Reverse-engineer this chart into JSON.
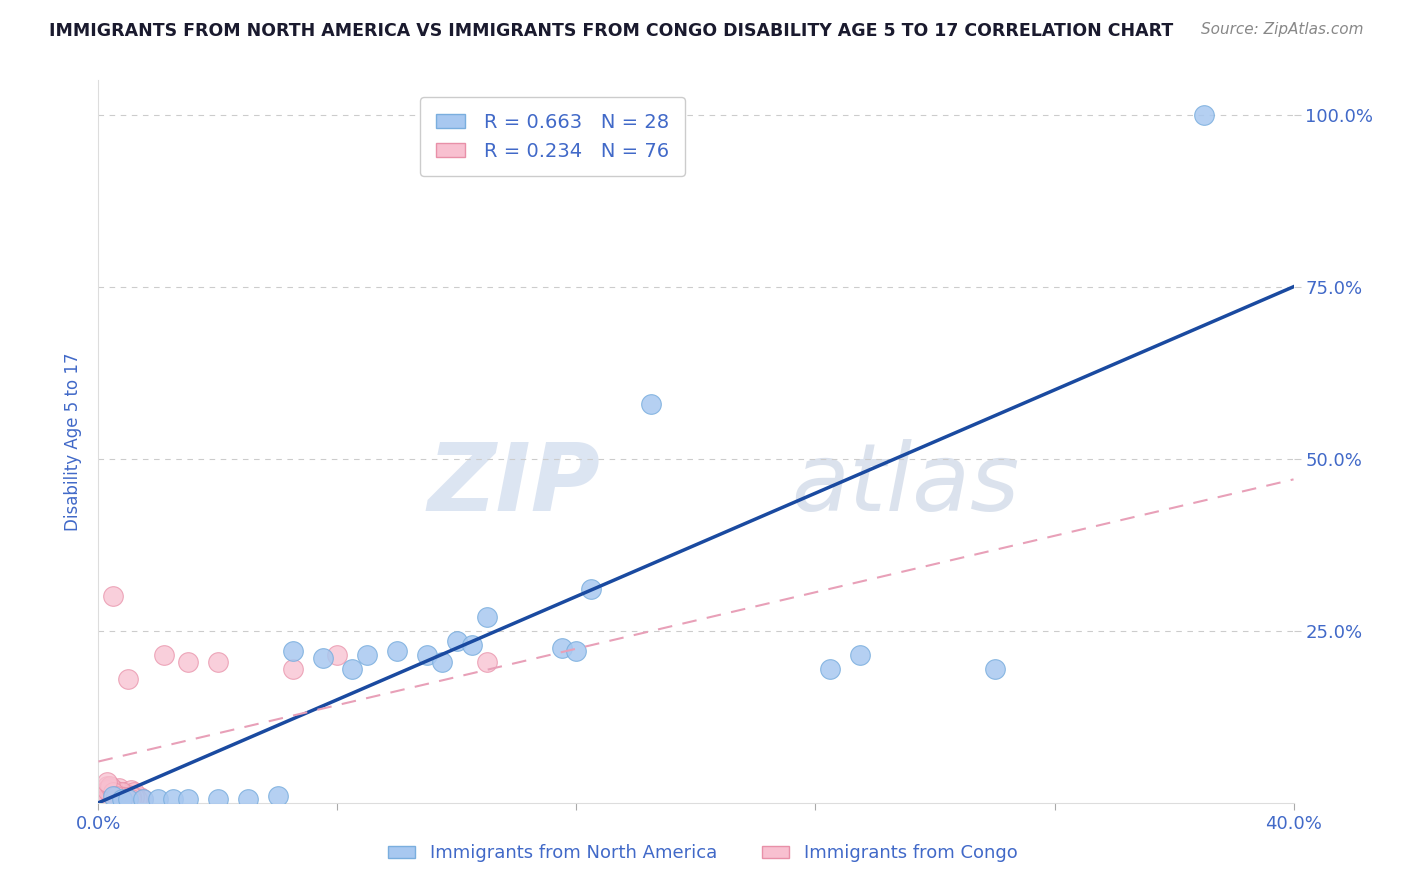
{
  "title": "IMMIGRANTS FROM NORTH AMERICA VS IMMIGRANTS FROM CONGO DISABILITY AGE 5 TO 17 CORRELATION CHART",
  "source": "Source: ZipAtlas.com",
  "ylabel": "Disability Age 5 to 17",
  "xlim": [
    0.0,
    0.4
  ],
  "ylim": [
    0.0,
    1.05
  ],
  "xtick_pos": [
    0.0,
    0.08,
    0.16,
    0.24,
    0.32,
    0.4
  ],
  "xticklabels": [
    "0.0%",
    "",
    "",
    "",
    "",
    "40.0%"
  ],
  "ytick_pos": [
    0.25,
    0.5,
    0.75,
    1.0
  ],
  "yticklabels": [
    "25.0%",
    "50.0%",
    "75.0%",
    "100.0%"
  ],
  "grid_color": "#cccccc",
  "background_color": "#ffffff",
  "title_color": "#1a1a2e",
  "tick_color": "#4169c8",
  "north_america_color": "#a8c8f0",
  "north_america_edge": "#7aaede",
  "congo_color": "#f8c0d0",
  "congo_edge": "#e890a8",
  "north_america_line_color": "#1a4aa0",
  "congo_line_color": "#e8a0b8",
  "legend_R1": "R = 0.663",
  "legend_N1": "N = 28",
  "legend_R2": "R = 0.234",
  "legend_N2": "N = 76",
  "na_x": [
    0.005,
    0.008,
    0.01,
    0.015,
    0.02,
    0.025,
    0.03,
    0.04,
    0.05,
    0.06,
    0.065,
    0.075,
    0.085,
    0.09,
    0.1,
    0.11,
    0.115,
    0.12,
    0.125,
    0.13,
    0.155,
    0.16,
    0.165,
    0.185,
    0.245,
    0.255,
    0.3,
    0.37
  ],
  "na_y": [
    0.01,
    0.005,
    0.005,
    0.005,
    0.005,
    0.005,
    0.005,
    0.005,
    0.005,
    0.01,
    0.22,
    0.21,
    0.195,
    0.215,
    0.22,
    0.215,
    0.205,
    0.235,
    0.23,
    0.27,
    0.225,
    0.22,
    0.31,
    0.58,
    0.195,
    0.215,
    0.195,
    1.0
  ],
  "cg_x_cluster": [
    0.002,
    0.003,
    0.004,
    0.005,
    0.006,
    0.007,
    0.008,
    0.009,
    0.01,
    0.011,
    0.012,
    0.013,
    0.014,
    0.015,
    0.003,
    0.005,
    0.007,
    0.009,
    0.011,
    0.006,
    0.008,
    0.01,
    0.012,
    0.004,
    0.006,
    0.008,
    0.003,
    0.007,
    0.009,
    0.005,
    0.011,
    0.013,
    0.006,
    0.009,
    0.004,
    0.008,
    0.01,
    0.007,
    0.005,
    0.003,
    0.009,
    0.011,
    0.006,
    0.008,
    0.004,
    0.007,
    0.01,
    0.005,
    0.012,
    0.008,
    0.006,
    0.009,
    0.004,
    0.011,
    0.007,
    0.005,
    0.003,
    0.008,
    0.01,
    0.006,
    0.009,
    0.004,
    0.007,
    0.011,
    0.005,
    0.003,
    0.008,
    0.006
  ],
  "cg_y_cluster": [
    0.005,
    0.008,
    0.012,
    0.005,
    0.01,
    0.015,
    0.005,
    0.008,
    0.01,
    0.006,
    0.012,
    0.007,
    0.009,
    0.006,
    0.02,
    0.018,
    0.022,
    0.015,
    0.018,
    0.01,
    0.008,
    0.006,
    0.015,
    0.012,
    0.009,
    0.005,
    0.008,
    0.012,
    0.01,
    0.015,
    0.008,
    0.006,
    0.005,
    0.01,
    0.018,
    0.012,
    0.008,
    0.015,
    0.01,
    0.025,
    0.007,
    0.009,
    0.008,
    0.01,
    0.015,
    0.006,
    0.012,
    0.02,
    0.008,
    0.015,
    0.01,
    0.007,
    0.022,
    0.01,
    0.008,
    0.012,
    0.018,
    0.009,
    0.006,
    0.012,
    0.008,
    0.025,
    0.01,
    0.006,
    0.015,
    0.03,
    0.005,
    0.01
  ],
  "cg_outlier_x": [
    0.005,
    0.01,
    0.022,
    0.03,
    0.04,
    0.065,
    0.08,
    0.13
  ],
  "cg_outlier_y": [
    0.3,
    0.18,
    0.215,
    0.205,
    0.205,
    0.195,
    0.215,
    0.205
  ],
  "na_line_x": [
    0.0,
    0.4
  ],
  "na_line_y": [
    0.0,
    0.75
  ],
  "cg_line_x": [
    0.0,
    0.4
  ],
  "cg_line_y": [
    0.06,
    0.47
  ]
}
